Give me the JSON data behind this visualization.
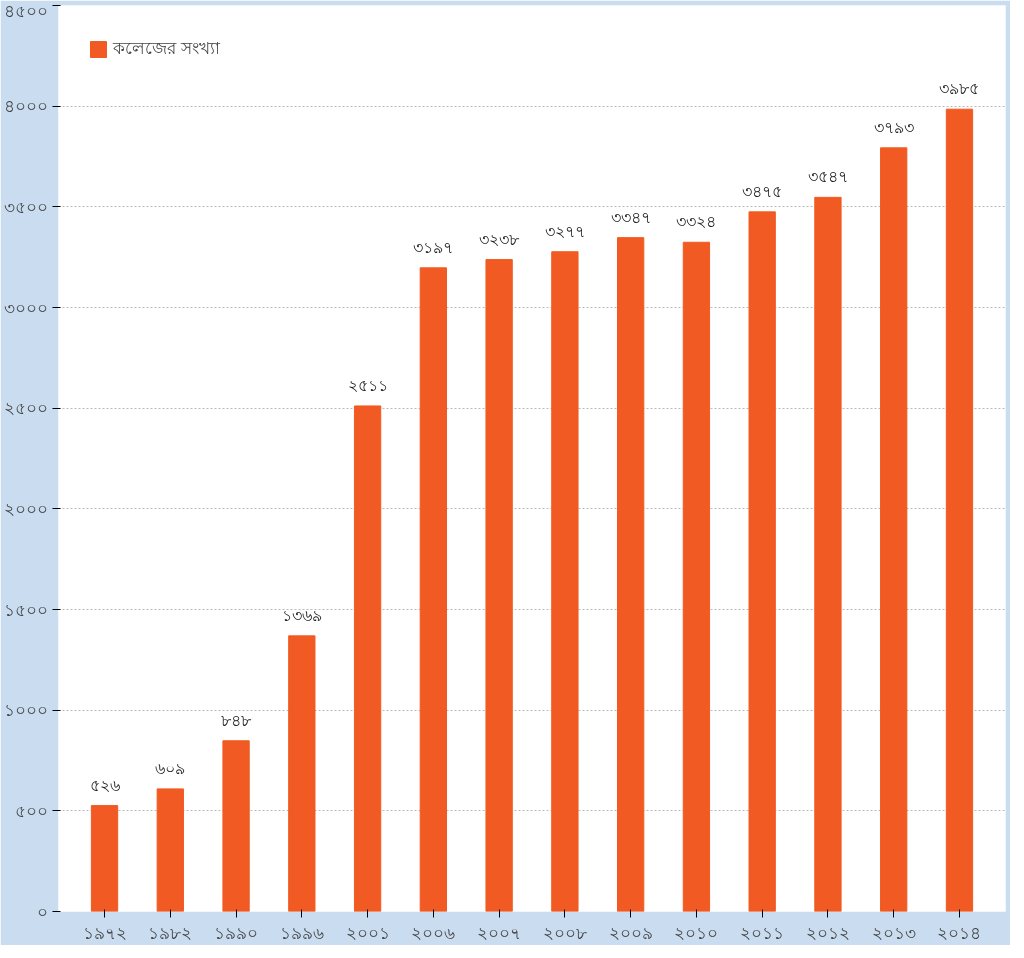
{
  "chart_data": {
    "type": "bar",
    "categories": [
      "১৯৭২",
      "১৯৮২",
      "১৯৯০",
      "১৯৯৬",
      "২০০১",
      "২০০৬",
      "২০০৭",
      "২০০৮",
      "২০০৯",
      "২০১০",
      "২০১১",
      "২০১২",
      "২০১৩",
      "২০১৪"
    ],
    "series": [
      {
        "name": "কলেজের সংখ্যা",
        "color": "#f15a22",
        "values": [
          526,
          609,
          848,
          1369,
          2511,
          3197,
          3238,
          3277,
          3347,
          3324,
          3475,
          3547,
          3793,
          3985
        ],
        "value_labels": [
          "৫২৬",
          "৬০৯",
          "৮৪৮",
          "১৩৬৯",
          "২৫১১",
          "৩১৯৭",
          "৩২৩৮",
          "৩২৭৭",
          "৩৩৪৭",
          "৩৩২৪",
          "৩৪৭৫",
          "৩৫৪৭",
          "৩৭৯৩",
          "৩৯৮৫"
        ]
      }
    ],
    "ylim": [
      0,
      4500
    ],
    "yticks": [
      {
        "value": 0,
        "label": "০"
      },
      {
        "value": 500,
        "label": "৫০০"
      },
      {
        "value": 1000,
        "label": "১০০০"
      },
      {
        "value": 1500,
        "label": "১৫০০"
      },
      {
        "value": 2000,
        "label": "২০০০"
      },
      {
        "value": 2500,
        "label": "২৫০০"
      },
      {
        "value": 3000,
        "label": "৩০০০"
      },
      {
        "value": 3500,
        "label": "৩৫০০"
      },
      {
        "value": 4000,
        "label": "৪০০০"
      },
      {
        "value": 4500,
        "label": "৪৫০০"
      }
    ],
    "grid": "y",
    "legend": "top left"
  }
}
